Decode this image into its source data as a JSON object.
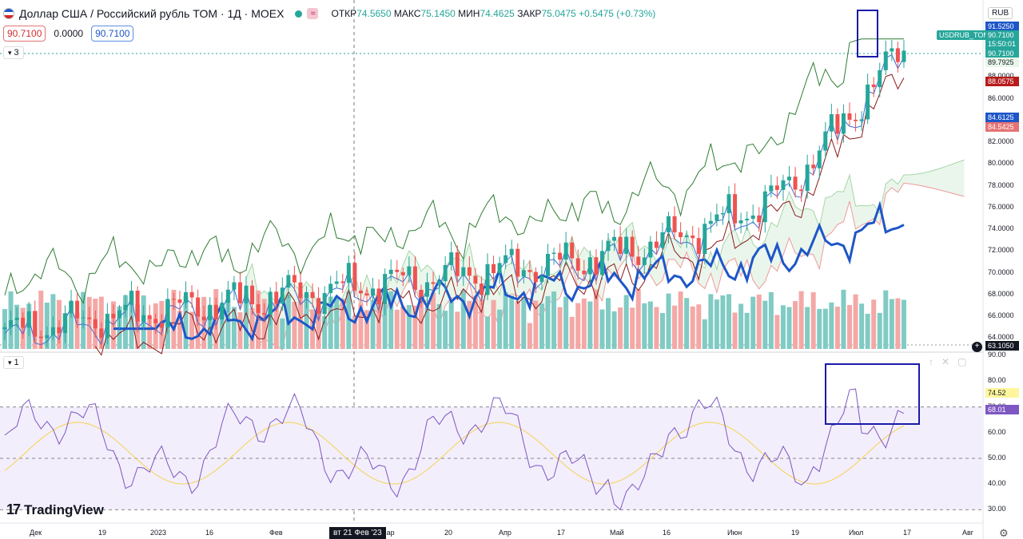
{
  "header": {
    "title": "Доллар США / Российский рубль TOM · 1Д · MOEX",
    "wave_badge": "≈",
    "ohlc": {
      "open_label": "ОТКР",
      "open": "74.5650",
      "high_label": "МАКС",
      "high": "75.1450",
      "low_label": "МИН",
      "low": "74.4625",
      "close_label": "ЗАКР",
      "close": "75.0475",
      "change": "+0.5475 (+0.73%)"
    },
    "bid": "90.7100",
    "spread": "0.0000",
    "ask": "90.7100",
    "indicators_count": "3",
    "currency": "RUB",
    "ticker_label": "USDRUB_TOM",
    "flag_icon": "us-flag-icon"
  },
  "price_axis": {
    "ticks": [
      "88.0000",
      "86.0000",
      "84.0000",
      "82.0000",
      "80.0000",
      "78.0000",
      "76.0000",
      "74.0000",
      "72.0000",
      "70.0000",
      "68.0000",
      "66.0000",
      "64.0000"
    ],
    "tags": [
      {
        "text": "91.5250",
        "color": "#1e56c8"
      },
      {
        "text": "90.7100",
        "color": "#26a69a"
      },
      {
        "text": "15:50:01",
        "color": "#26a69a"
      },
      {
        "text": "90.7100",
        "color": "#26a69a"
      },
      {
        "text": "89.7925",
        "color": "#e8f5e9"
      },
      {
        "text": "88.0575",
        "color": "#b71c1c"
      },
      {
        "text": "84.6125",
        "color": "#1e56c8"
      },
      {
        "text": "84.5425",
        "color": "#e57373"
      },
      {
        "text": "63.1050",
        "color": "#131722"
      }
    ]
  },
  "rsi_panel": {
    "count": "1",
    "ticks": [
      "90.00",
      "80.00",
      "70.00",
      "60.00",
      "50.00",
      "40.00",
      "30.00"
    ],
    "tags": [
      {
        "text": "74.52",
        "color": "#fff59d"
      },
      {
        "text": "68.01",
        "color": "#7e57c2"
      }
    ]
  },
  "time_axis": {
    "labels": [
      "Дек",
      "19",
      "2023",
      "16",
      "Фев",
      "Мар",
      "20",
      "Апр",
      "17",
      "Май",
      "16",
      "Июн",
      "19",
      "Июл",
      "17",
      "Авг"
    ],
    "crosshair_date": "вт 21 Фев '23"
  },
  "branding": {
    "logo_text": "TradingView",
    "logo_mark": "17"
  },
  "chart_data": {
    "type": "candlestick",
    "ylim": [
      63,
      92
    ],
    "rsi_ylim": [
      27,
      91
    ],
    "colors": {
      "up": "#26a69a",
      "down": "#ef5350",
      "ma_blue": "#1e56c8",
      "band_green": "#2e7d32",
      "band_red": "#8b1a1a",
      "rsi": "#7e57c2",
      "rsi_ma": "#f5d34f"
    }
  }
}
